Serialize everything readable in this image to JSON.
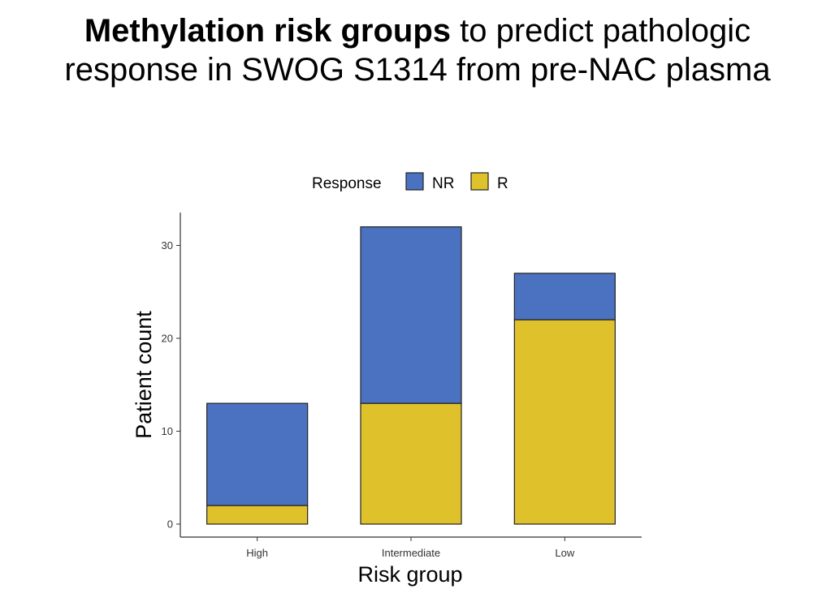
{
  "slide": {
    "title_bold": "Methylation risk groups",
    "title_rest": " to predict pathologic",
    "title_line2": "response in SWOG S1314 from pre-NAC plasma"
  },
  "chart_data": {
    "type": "bar",
    "stacked": true,
    "categories": [
      "High",
      "Intermediate",
      "Low"
    ],
    "series": [
      {
        "name": "R",
        "color": "#dfc12c",
        "values": [
          2,
          13,
          22
        ]
      },
      {
        "name": "NR",
        "color": "#4a72c0",
        "values": [
          11,
          19,
          5
        ]
      }
    ],
    "xlabel": "Risk group",
    "ylabel": "Patient count",
    "ylim": [
      0,
      33
    ],
    "yticks": [
      0,
      10,
      20,
      30
    ],
    "legend": {
      "title": "Response",
      "order": [
        "NR",
        "R"
      ],
      "placement": "top-center"
    },
    "grid": false
  }
}
